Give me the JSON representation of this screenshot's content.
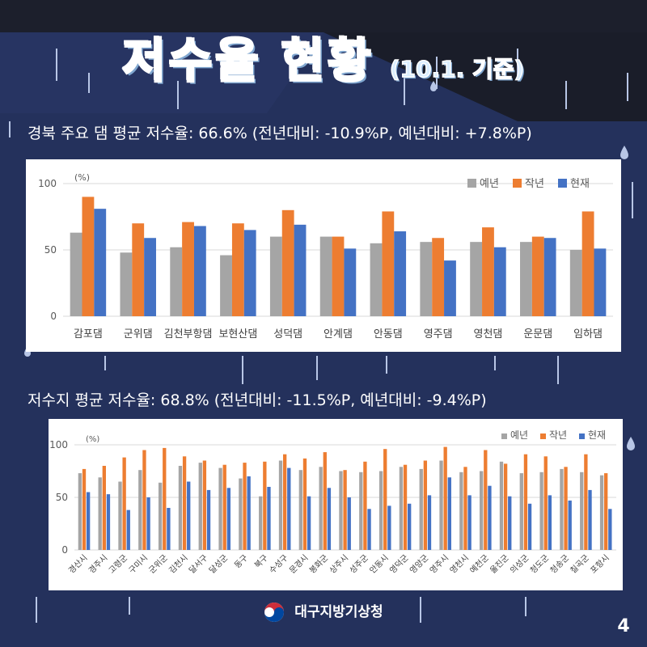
{
  "header": {
    "title": "저수율 현황",
    "date_note": "(10.1. 기준)"
  },
  "sections": {
    "dams_subtitle": "경북 주요 댐 평균 저수율: 66.6% (전년대비: -10.9%P, 예년대비: +7.8%P)",
    "reservoirs_subtitle": "저수지 평균 저수율: 68.8% (전년대비: -11.5%P, 예년대비: -9.4%P)"
  },
  "footer": {
    "agency": "대구지방기상청",
    "page": "4"
  },
  "colors": {
    "normal": "#a5a5a5",
    "last_year": "#ed7d31",
    "current": "#4472c4",
    "background": "#24315c"
  },
  "chart_data": [
    {
      "type": "bar",
      "unit_label": "(%)",
      "ylim": [
        0,
        100
      ],
      "yticks": [
        0,
        50,
        100
      ],
      "legend_position": "top-right",
      "categories": [
        "감포댐",
        "군위댐",
        "김천부항댐",
        "보현산댐",
        "성덕댐",
        "안계댐",
        "안동댐",
        "영주댐",
        "영천댐",
        "운문댐",
        "임하댐"
      ],
      "series": [
        {
          "name": "예년",
          "color": "#a5a5a5",
          "values": [
            63,
            48,
            52,
            46,
            60,
            60,
            55,
            56,
            56,
            56,
            50
          ]
        },
        {
          "name": "작년",
          "color": "#ed7d31",
          "values": [
            90,
            70,
            71,
            70,
            80,
            60,
            79,
            59,
            67,
            60,
            79
          ]
        },
        {
          "name": "현재",
          "color": "#4472c4",
          "values": [
            81,
            59,
            68,
            65,
            69,
            51,
            64,
            42,
            52,
            59,
            51
          ]
        }
      ]
    },
    {
      "type": "bar",
      "unit_label": "(%)",
      "ylim": [
        0,
        100
      ],
      "yticks": [
        0,
        50,
        100
      ],
      "legend_position": "top-right",
      "categories": [
        "경산시",
        "경주시",
        "고령군",
        "구미시",
        "군위군",
        "김천시",
        "달서구",
        "달성군",
        "동구",
        "북구",
        "수성구",
        "문경시",
        "봉화군",
        "상주시",
        "성주군",
        "안동시",
        "영덕군",
        "영양군",
        "영주시",
        "영천시",
        "예천군",
        "울진군",
        "의성군",
        "청도군",
        "청송군",
        "칠곡군",
        "포항시"
      ],
      "series": [
        {
          "name": "예년",
          "color": "#a5a5a5",
          "values": [
            73,
            69,
            65,
            76,
            64,
            80,
            83,
            78,
            68,
            51,
            85,
            76,
            79,
            75,
            74,
            75,
            79,
            77,
            85,
            74,
            75,
            84,
            73,
            74,
            77,
            74,
            71
          ]
        },
        {
          "name": "작년",
          "color": "#ed7d31",
          "values": [
            77,
            80,
            88,
            95,
            97,
            89,
            85,
            81,
            83,
            84,
            91,
            87,
            93,
            76,
            84,
            96,
            81,
            85,
            98,
            79,
            95,
            82,
            91,
            89,
            79,
            91,
            73
          ]
        },
        {
          "name": "현재",
          "color": "#4472c4",
          "values": [
            55,
            53,
            38,
            50,
            40,
            65,
            57,
            59,
            70,
            60,
            78,
            51,
            59,
            50,
            39,
            42,
            44,
            52,
            69,
            52,
            61,
            51,
            44,
            52,
            47,
            57,
            39
          ]
        }
      ]
    }
  ]
}
